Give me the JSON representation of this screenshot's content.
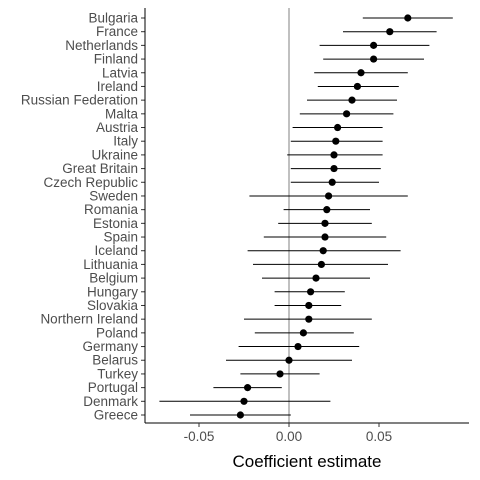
{
  "chart_data": {
    "type": "scatter",
    "title": "",
    "xlabel": "Coefficient estimate",
    "ylabel": "",
    "xlim": [
      -0.08,
      0.1
    ],
    "xticks": [
      -0.05,
      0.0,
      0.05
    ],
    "xtick_labels": [
      "-0.05",
      "0.00",
      "0.05"
    ],
    "reference_line_x": 0,
    "grid": false,
    "legend": "none",
    "marker_color": "#000000",
    "errorbar_color": "#000000",
    "reference_line_color": "#808080",
    "categories": [
      "Bulgaria",
      "France",
      "Netherlands",
      "Finland",
      "Latvia",
      "Ireland",
      "Russian Federation",
      "Malta",
      "Austria",
      "Italy",
      "Ukraine",
      "Great Britain",
      "Czech Republic",
      "Sweden",
      "Romania",
      "Estonia",
      "Spain",
      "Iceland",
      "Lithuania",
      "Belgium",
      "Hungary",
      "Slovakia",
      "Northern Ireland",
      "Poland",
      "Germany",
      "Belarus",
      "Turkey",
      "Portugal",
      "Denmark",
      "Greece"
    ],
    "estimates": [
      0.066,
      0.056,
      0.047,
      0.047,
      0.04,
      0.038,
      0.035,
      0.032,
      0.027,
      0.026,
      0.025,
      0.025,
      0.024,
      0.022,
      0.021,
      0.02,
      0.02,
      0.019,
      0.018,
      0.015,
      0.012,
      0.011,
      0.011,
      0.008,
      0.005,
      0.0,
      -0.005,
      -0.023,
      -0.025,
      -0.027
    ],
    "lower": [
      0.041,
      0.03,
      0.017,
      0.019,
      0.014,
      0.016,
      0.01,
      0.006,
      0.002,
      0.001,
      -0.001,
      0.001,
      0.001,
      -0.022,
      -0.003,
      -0.006,
      -0.014,
      -0.023,
      -0.02,
      -0.015,
      -0.008,
      -0.008,
      -0.025,
      -0.019,
      -0.028,
      -0.035,
      -0.027,
      -0.042,
      -0.072,
      -0.055
    ],
    "upper": [
      0.091,
      0.082,
      0.078,
      0.075,
      0.066,
      0.061,
      0.06,
      0.058,
      0.052,
      0.052,
      0.052,
      0.051,
      0.05,
      0.066,
      0.045,
      0.046,
      0.054,
      0.062,
      0.055,
      0.045,
      0.031,
      0.029,
      0.046,
      0.036,
      0.039,
      0.035,
      0.017,
      -0.004,
      0.023,
      0.001
    ]
  }
}
